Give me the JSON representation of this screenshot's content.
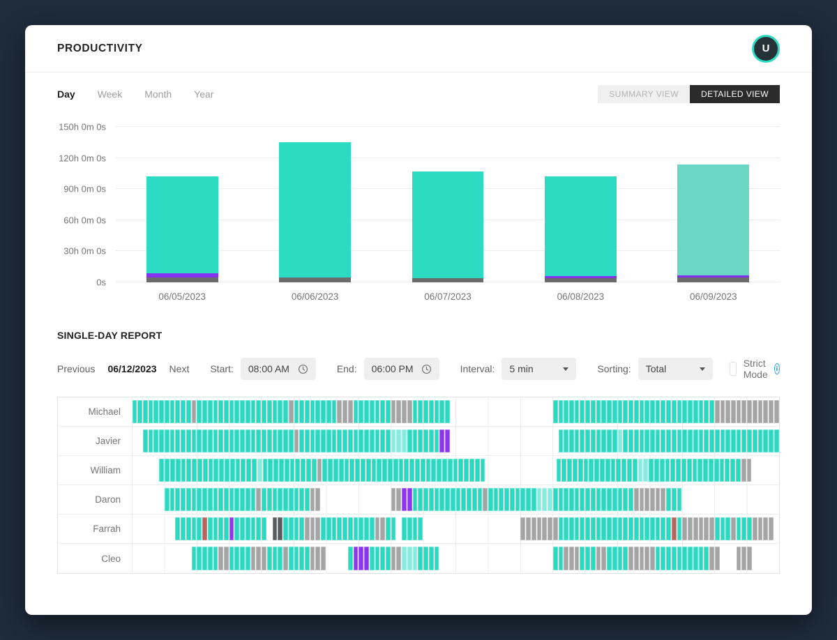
{
  "header": {
    "title": "PRODUCTIVITY",
    "avatar_initial": "U"
  },
  "tabs": [
    {
      "label": "Day",
      "active": true
    },
    {
      "label": "Week",
      "active": false
    },
    {
      "label": "Month",
      "active": false
    },
    {
      "label": "Year",
      "active": false
    }
  ],
  "view_toggle": {
    "summary_label": "SUMMARY VIEW",
    "detailed_label": "DETAILED VIEW",
    "active": "detailed"
  },
  "colors": {
    "accent_teal": "#2bdcc3",
    "muted_teal": "#6cd6c5",
    "purple": "#8531f0",
    "dark_gray_segment": "#6b6b6b",
    "toggle_dark": "#2b2b2b",
    "page_background": "#1e2c3c"
  },
  "chart_data": {
    "type": "bar",
    "stacked": true,
    "unit": "hours",
    "title": "",
    "xlabel": "",
    "ylabel": "",
    "ylim": [
      0,
      150
    ],
    "grid": "horizontal",
    "legend": "none",
    "categories": [
      "06/05/2023",
      "06/06/2023",
      "06/07/2023",
      "06/08/2023",
      "06/09/2023"
    ],
    "series": [
      {
        "name": "gray",
        "color": "#6b6b6b",
        "values": [
          5,
          5,
          4,
          4,
          5
        ]
      },
      {
        "name": "purple",
        "color": "#8531f0",
        "values": [
          4,
          0,
          0,
          2,
          2
        ]
      },
      {
        "name": "productive",
        "color": "#2bdcc3",
        "values": [
          93,
          130,
          103,
          96,
          107
        ]
      }
    ],
    "bar_fill_overrides": {
      "4": "#6cd6c5"
    },
    "totals_hours": [
      102,
      135,
      107,
      102,
      114
    ],
    "y_ticks": [
      {
        "label": "150h 0m 0s",
        "value": 150
      },
      {
        "label": "120h 0m 0s",
        "value": 120
      },
      {
        "label": "90h 0m 0s",
        "value": 90
      },
      {
        "label": "60h 0m 0s",
        "value": 60
      },
      {
        "label": "30h 0m 0s",
        "value": 30
      },
      {
        "label": "0s",
        "value": 0
      }
    ]
  },
  "report": {
    "heading": "SINGLE-DAY REPORT",
    "previous_label": "Previous",
    "date": "06/12/2023",
    "next_label": "Next",
    "start_label": "Start:",
    "start_value": "08:00 AM",
    "end_label": "End:",
    "end_value": "06:00 PM",
    "interval_label": "Interval:",
    "interval_value": "5 min",
    "sorting_label": "Sorting:",
    "sorting_value": "Total",
    "strict_mode_label": "Strict Mode",
    "strict_mode_checked": false,
    "slots_per_row": 120,
    "cell_colors": {
      "T": "#2bd9c0",
      "G": "#a4a4a4",
      "P": "#8c35f0",
      "R": "#b5655c",
      "D": "#565b5e",
      "L": "#86ecdf"
    },
    "rows": [
      {
        "name": "Michael",
        "pattern": "TTTTTTTTTTTGTTTTTTTTTTTTTTTTTGTTTTTTTTGGGTTTTTTTGGGGTTTTTTT...................TTTTTTTTTTTTTTTTTTTTTTTTTTTTTTGGGGGGGGGGGG"
      },
      {
        "name": "Javier",
        "pattern": "..TTTTTTTTTTTTTTTTTTTTTTTTTTTTGTTTTTTTTTTTTTTTTTLLLTTTTTTPP....................TTTTTTTTTTTLTTTTTTTTTTTTTTTTTTTTTTTTTTTTT"
      },
      {
        "name": "William",
        "pattern": ".....TTTTTTTTTTTTTTTTTTLTTTTTTTTTTGTTTTTTTTTTTTTTTTTTTTTTTTTTTTTT.............TTTTTTTTTTTTTTTLLTTTTTTTTTTTTTTTTTGG....."
      },
      {
        "name": "Daron",
        "pattern": "......TTTTTTTTTTTTTTTTTGTTTTTTTTTGG.............GGPPTTTTTTTTTTTTTGTTTTTTTTTLLLTTTTTTTTTTTTTTTGGGGGGTTT.................."
      },
      {
        "name": "Farrah",
        "pattern": "........TTTTTRTTTTPTTTTTT.DDTTTTGGGTTTTTTTTTTGGTT.TTTT..................GGGGGGGTTTTTTTTTTTTTTTTTTTTTRTGGGGGGTTTGTTTGGGG."
      },
      {
        "name": "Cleo",
        "pattern": "...........TTTTTGGTTTTGGGTTTGTTTTGGG....TPPPTTTTGGLLLTTTT.....................TTGGGTTTGGTTTTGGGGGTTTTTTTTTTGG...GGG....."
      }
    ]
  }
}
